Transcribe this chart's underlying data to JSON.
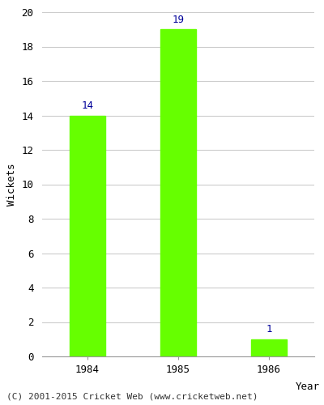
{
  "categories": [
    "1984",
    "1985",
    "1986"
  ],
  "values": [
    14,
    19,
    1
  ],
  "bar_color": "#66ff00",
  "bar_edge_color": "#66ff00",
  "ylabel": "Wickets",
  "xlabel": "Year",
  "ylim": [
    0,
    20
  ],
  "yticks": [
    0,
    2,
    4,
    6,
    8,
    10,
    12,
    14,
    16,
    18,
    20
  ],
  "label_color": "#000099",
  "label_fontsize": 9,
  "axis_label_fontsize": 9,
  "tick_fontsize": 9,
  "footer_text": "(C) 2001-2015 Cricket Web (www.cricketweb.net)",
  "footer_fontsize": 8,
  "background_color": "#ffffff",
  "plot_background_color": "#ffffff",
  "grid_color": "#cccccc",
  "bar_width": 0.4
}
